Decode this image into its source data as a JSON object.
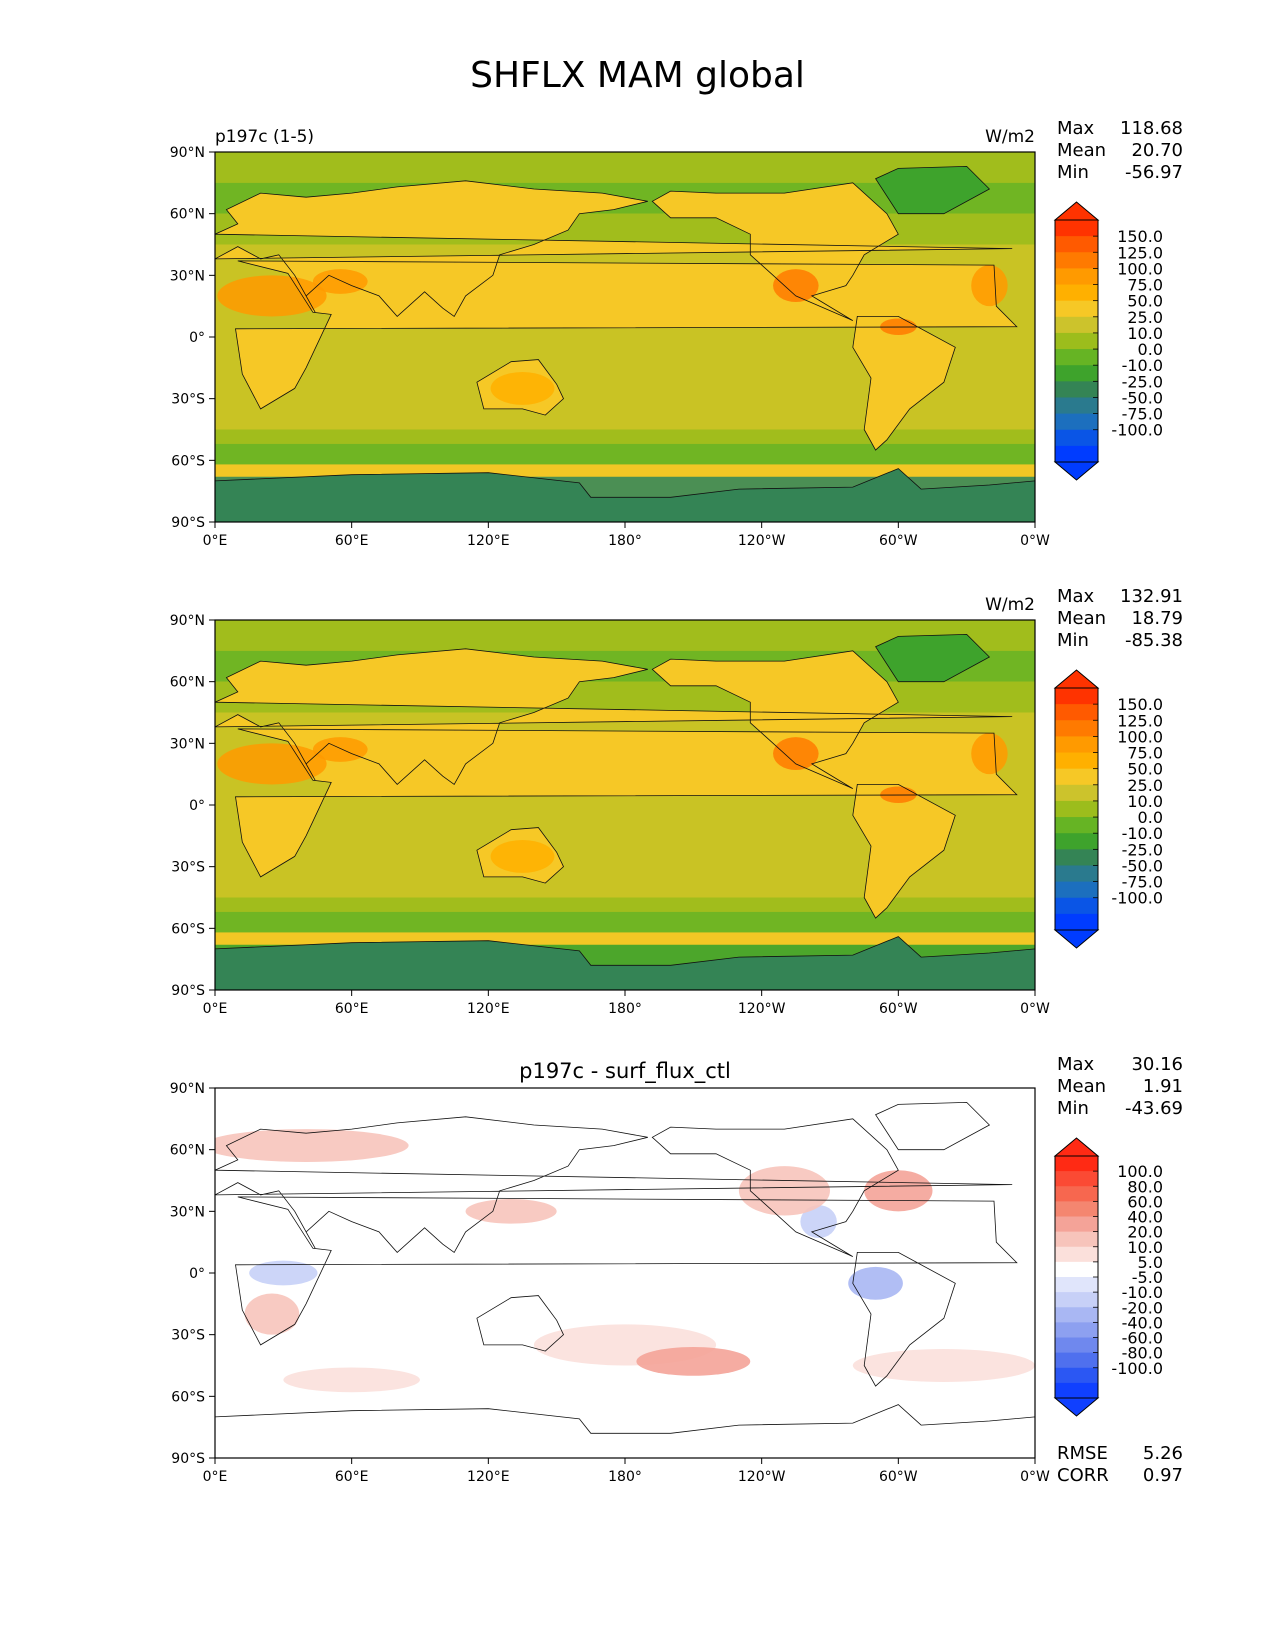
{
  "figure": {
    "title": "SHFLX MAM global"
  },
  "lat_labels": [
    "90°N",
    "60°N",
    "30°N",
    "0°",
    "30°S",
    "60°S",
    "90°S"
  ],
  "lon_labels": [
    "0°E",
    "60°E",
    "120°E",
    "180°",
    "120°W",
    "60°W",
    "0°W"
  ],
  "panels": [
    {
      "left_title": "p197c (1-5)",
      "center_title": "",
      "units": "W/m2",
      "stats": [
        {
          "label": "Max",
          "value": "118.68"
        },
        {
          "label": "Mean",
          "value": "20.70"
        },
        {
          "label": "Min",
          "value": "-56.97"
        }
      ],
      "colorbar": {
        "ticks": [
          "150.0",
          "125.0",
          "100.0",
          "75.0",
          "50.0",
          "25.0",
          "10.0",
          "0.0",
          "-10.0",
          "-25.0",
          "-50.0",
          "-75.0",
          "-100.0"
        ],
        "colors": [
          "#ff3300",
          "#ff5a00",
          "#ff7a00",
          "#ff9a00",
          "#ffb000",
          "#f6c826",
          "#ccc32c",
          "#9cbd1c",
          "#66b424",
          "#3ea32c",
          "#348455",
          "#2a7a8e",
          "#1c6fbe",
          "#0a55e6",
          "#003cff"
        ],
        "under_color": "#003cff",
        "over_color": "#ff3300"
      },
      "extra_stats": []
    },
    {
      "left_title": "",
      "center_title": "",
      "units": "W/m2",
      "stats": [
        {
          "label": "Max",
          "value": "132.91"
        },
        {
          "label": "Mean",
          "value": "18.79"
        },
        {
          "label": "Min",
          "value": "-85.38"
        }
      ],
      "colorbar": {
        "ticks": [
          "150.0",
          "125.0",
          "100.0",
          "75.0",
          "50.0",
          "25.0",
          "10.0",
          "0.0",
          "-10.0",
          "-25.0",
          "-50.0",
          "-75.0",
          "-100.0"
        ],
        "colors": [
          "#ff3300",
          "#ff5a00",
          "#ff7a00",
          "#ff9a00",
          "#ffb000",
          "#f6c826",
          "#ccc32c",
          "#9cbd1c",
          "#66b424",
          "#3ea32c",
          "#348455",
          "#2a7a8e",
          "#1c6fbe",
          "#0a55e6",
          "#003cff"
        ],
        "under_color": "#003cff",
        "over_color": "#ff3300"
      },
      "extra_stats": []
    },
    {
      "left_title": "",
      "center_title": "p197c - surf_flux_ctl",
      "units": "",
      "stats": [
        {
          "label": "Max",
          "value": "30.16"
        },
        {
          "label": "Mean",
          "value": "1.91"
        },
        {
          "label": "Min",
          "value": "-43.69"
        }
      ],
      "colorbar": {
        "ticks": [
          "100.0",
          "80.0",
          "60.0",
          "40.0",
          "20.0",
          "10.0",
          "5.0",
          "-5.0",
          "-10.0",
          "-20.0",
          "-40.0",
          "-60.0",
          "-80.0",
          "-100.0"
        ],
        "colors": [
          "#ff2a14",
          "#fb4a34",
          "#f7674f",
          "#f48670",
          "#f4a398",
          "#f7c4bb",
          "#fbe0db",
          "#ffffff",
          "#e0e5fb",
          "#c7d0f7",
          "#a9b7f3",
          "#8da0f0",
          "#6f88ee",
          "#4f70ee",
          "#2b57f3",
          "#1040ff"
        ],
        "under_color": "#1040ff",
        "over_color": "#ff2a14"
      },
      "extra_stats": [
        {
          "label": "RMSE",
          "value": "5.26"
        },
        {
          "label": "CORR",
          "value": "0.97"
        }
      ]
    }
  ]
}
